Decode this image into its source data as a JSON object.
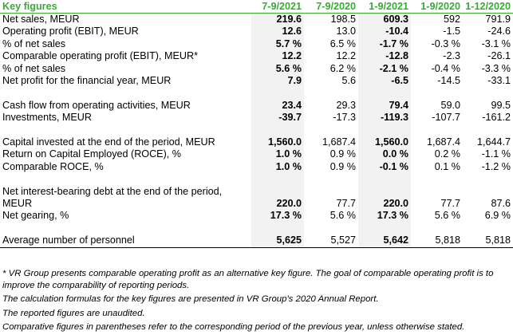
{
  "header": {
    "label": "Key figures",
    "columns": [
      "7-9/2021",
      "7-9/2020",
      "1-9/2021",
      "1-9/2020",
      "1-12/2020"
    ]
  },
  "rows": {
    "net_sales": {
      "label": "Net sales, MEUR",
      "values": [
        "219.6",
        "198.5",
        "609.3",
        "592",
        "791.9"
      ]
    },
    "ebit": {
      "label": "Operating profit (EBIT), MEUR",
      "values": [
        "12.6",
        "13.0",
        "-10.4",
        "-1.5",
        "-24.6"
      ]
    },
    "ebit_pct": {
      "label": "% of net sales",
      "values": [
        "5.7 %",
        "6.5 %",
        "-1.7 %",
        "-0.3 %",
        "-3.1 %"
      ]
    },
    "comp_ebit": {
      "label": "Comparable operating profit (EBIT), MEUR*",
      "values": [
        "12.2",
        "12.2",
        "-12.8",
        "-2.3",
        "-26.1"
      ]
    },
    "comp_ebit_pct": {
      "label": "% of net sales",
      "values": [
        "5.6 %",
        "6.2 %",
        "-2.1 %",
        "-0.4 %",
        "-3.3 %"
      ]
    },
    "net_profit": {
      "label": "Net profit for the financial year, MEUR",
      "values": [
        "7.9",
        "5.6",
        "-6.5",
        "-14.5",
        "-33.1"
      ]
    },
    "cash_flow": {
      "label": "Cash flow from operating activities, MEUR",
      "values": [
        "23.4",
        "29.3",
        "79.4",
        "59.0",
        "99.5"
      ]
    },
    "investments": {
      "label": "Investments, MEUR",
      "values": [
        "-39.7",
        "-17.3",
        "-119.3",
        "-107.7",
        "-161.2"
      ]
    },
    "capital_invested": {
      "label": "Capital invested at the end of the period, MEUR",
      "values": [
        "1,560.0",
        "1,687.4",
        "1,560.0",
        "1,687.4",
        "1,644.7"
      ]
    },
    "roce": {
      "label": "Return on Capital Employed (ROCE), %",
      "values": [
        "1.0 %",
        "0.9 %",
        "0.0 %",
        "0.2 %",
        "-1.1 %"
      ]
    },
    "comp_roce": {
      "label": "Comparable ROCE, %",
      "values": [
        "1.0 %",
        "0.9 %",
        "-0.1 %",
        "0.1 %",
        "-1.2 %"
      ]
    },
    "net_debt": {
      "label": "Net interest-bearing debt at the end of the period, MEUR",
      "values": [
        "220.0",
        "77.7",
        "220.0",
        "77.7",
        "87.6"
      ]
    },
    "net_gearing": {
      "label": "Net gearing, %",
      "values": [
        "17.3 %",
        "5.6 %",
        "17.3 %",
        "5.6 %",
        "6.9 %"
      ]
    },
    "personnel": {
      "label": "Average number of personnel",
      "values": [
        "5,625",
        "5,527",
        "5,642",
        "5,818",
        "5,818"
      ]
    }
  },
  "notes": [
    "* VR Group presents comparable operating profit as an alternative key figure. The goal of comparable operating profit is to improve the comparability of reporting periods.",
    "The calculation formulas for the key figures are presented in VR Group's 2020 Annual Report.",
    "The reported figures are unaudited.",
    "Comparative figures in parentheses refer to the corresponding period of the previous year, unless otherwise stated."
  ],
  "colors": {
    "header_text": "#3aaa35",
    "highlight_column": "#f2f2f2"
  }
}
